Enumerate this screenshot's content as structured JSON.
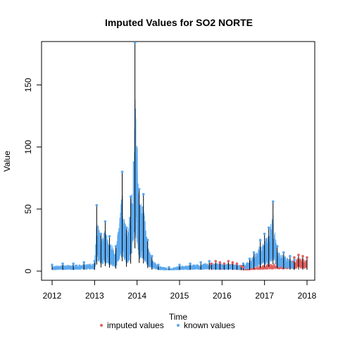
{
  "chart_data": {
    "type": "scatter",
    "title": "Imputed Values for  SO2 NORTE",
    "xlabel": "Time",
    "ylabel": "Value",
    "xlim": [
      2012,
      2018
    ],
    "ylim": [
      0,
      185
    ],
    "x_ticks": [
      {
        "value": 2012,
        "label": "2012"
      },
      {
        "value": 2013,
        "label": "2013"
      },
      {
        "value": 2014,
        "label": "2014"
      },
      {
        "value": 2015,
        "label": "2015"
      },
      {
        "value": 2016,
        "label": "2016"
      },
      {
        "value": 2017,
        "label": "2017"
      },
      {
        "value": 2018,
        "label": "2018"
      }
    ],
    "y_ticks": [
      {
        "value": 0,
        "label": "0"
      },
      {
        "value": 50,
        "label": "50"
      },
      {
        "value": 100,
        "label": "100"
      },
      {
        "value": 150,
        "label": "150"
      }
    ],
    "grid": false,
    "legend_position": "bottom",
    "legend": [
      {
        "label": "imputed values",
        "color": "#E06060"
      },
      {
        "label": "known values",
        "color": "#5BA8EE"
      }
    ],
    "line_color": "#000000",
    "series": [
      {
        "name": "imputed values",
        "color": "#E06060",
        "x": [
          2015.75,
          2015.85,
          2015.95,
          2016.05,
          2016.15,
          2016.25,
          2016.35,
          2016.45,
          2016.5,
          2017.7,
          2017.8,
          2017.9,
          2018.0
        ],
        "values": [
          6,
          8,
          7,
          6,
          8,
          7,
          6,
          4,
          3,
          11,
          13,
          12,
          11
        ]
      },
      {
        "name": "known values",
        "color": "#5BA8EE",
        "x": [
          2012.0,
          2012.25,
          2012.5,
          2012.75,
          2013.0,
          2013.05,
          2013.15,
          2013.25,
          2013.35,
          2013.5,
          2013.65,
          2013.75,
          2013.85,
          2013.95,
          2014.05,
          2014.15,
          2014.25,
          2014.35,
          2014.5,
          2014.75,
          2015.0,
          2015.25,
          2015.5,
          2015.7,
          2016.5,
          2016.65,
          2016.75,
          2016.9,
          2017.0,
          2017.1,
          2017.2,
          2017.3,
          2017.45,
          2017.6,
          2017.7
        ],
        "values": [
          5,
          6,
          6,
          7,
          8,
          53,
          30,
          40,
          28,
          20,
          80,
          35,
          60,
          184,
          66,
          62,
          25,
          12,
          5,
          3,
          5,
          6,
          7,
          8,
          6,
          10,
          15,
          25,
          30,
          35,
          56,
          20,
          15,
          12,
          9
        ]
      }
    ]
  }
}
